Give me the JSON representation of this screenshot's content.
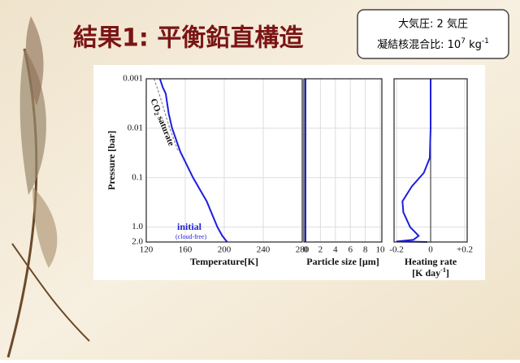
{
  "slide": {
    "title": "結果1: 平衡鉛直構造",
    "box": {
      "line1": "大気圧: 2 気圧",
      "line2": [
        "凝結核混合比: 10",
        "7",
        " kg",
        "-1"
      ]
    }
  },
  "chart_data": [
    {
      "type": "line",
      "xlabel": [
        "Temperature[K]"
      ],
      "ylabel": "Pressure [bar]",
      "xlim": [
        120,
        280
      ],
      "xticks": [
        120,
        160,
        200,
        240,
        280
      ],
      "ylim": [
        0.001,
        2
      ],
      "yticks": [
        0.001,
        0.01,
        0.1,
        {
          "value": 1,
          "label": "1.0"
        },
        {
          "value": 2,
          "label": "2.0"
        }
      ],
      "y_scale": "log",
      "y_inverted": true,
      "grid": true,
      "series": [
        {
          "name": "initial",
          "annotation": "(cloud-free)",
          "color": "#1e1ee0",
          "x": [
            134,
            137,
            140,
            143,
            146.5,
            155,
            168,
            182,
            193,
            198,
            203
          ],
          "y": [
            0.001,
            0.0015,
            0.002,
            0.005,
            0.01,
            0.03,
            0.1,
            0.3,
            1,
            1.5,
            2
          ]
        },
        {
          "name_parts": [
            "CO",
            "2",
            " saturate"
          ],
          "color": "#8a8a8a",
          "dash": true,
          "x": [
            128,
            132,
            136,
            140,
            144,
            153
          ],
          "y": [
            0.001,
            0.0017,
            0.003,
            0.0055,
            0.01,
            0.03
          ]
        }
      ]
    },
    {
      "type": "line",
      "xlabel": [
        "Particle size [µm]"
      ],
      "xlim": [
        0,
        10
      ],
      "xticks": [
        0,
        2,
        4,
        6,
        8,
        10
      ],
      "ylim": [
        0.001,
        2
      ],
      "y_scale": "log",
      "y_inverted": true,
      "grid": true,
      "series": [
        {
          "color": "#1e1ee0",
          "x": [
            0,
            0
          ],
          "y": [
            0.001,
            2
          ]
        }
      ]
    },
    {
      "type": "line",
      "xlabel": [
        "Heating rate",
        "[K day",
        "-1",
        "]"
      ],
      "xlim": [
        -0.2,
        0.2
      ],
      "xticks": [
        -0.2,
        0,
        {
          "value": 0.2,
          "label": "+0.2"
        }
      ],
      "ylim": [
        0.001,
        2
      ],
      "y_scale": "log",
      "y_inverted": true,
      "grid": true,
      "zero_line": true,
      "series": [
        {
          "color": "#1e1ee0",
          "x": [
            0,
            0,
            -0.005,
            -0.04,
            -0.11,
            -0.165,
            -0.16,
            -0.12,
            -0.07,
            -0.1,
            -0.2,
            -0.02
          ],
          "y": [
            0.001,
            0.01,
            0.04,
            0.08,
            0.15,
            0.3,
            0.5,
            1,
            1.5,
            1.8,
            1.95,
            2
          ]
        }
      ]
    }
  ]
}
